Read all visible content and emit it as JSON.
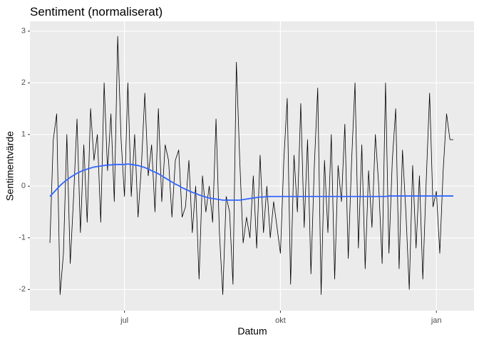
{
  "chart_data": {
    "type": "line",
    "title": "Sentiment (normaliserat)",
    "x_label": "Datum",
    "y_label": "Sentimentvärde",
    "categories": [
      null,
      null,
      null,
      null,
      null,
      null,
      null,
      null,
      null,
      null,
      null,
      null,
      null,
      null,
      null,
      null,
      null,
      null,
      null,
      null,
      null,
      null,
      "jul",
      null,
      null,
      null,
      null,
      null,
      null,
      null,
      null,
      null,
      null,
      null,
      null,
      null,
      null,
      null,
      null,
      null,
      null,
      null,
      null,
      null,
      null,
      null,
      null,
      null,
      null,
      null,
      null,
      null,
      null,
      null,
      null,
      null,
      null,
      null,
      null,
      null,
      null,
      null,
      null,
      null,
      null,
      null,
      null,
      null,
      "okt",
      null,
      null,
      null,
      null,
      null,
      null,
      null,
      null,
      null,
      null,
      null,
      null,
      null,
      null,
      null,
      null,
      null,
      null,
      null,
      null,
      null,
      null,
      null,
      null,
      null,
      null,
      null,
      null,
      null,
      null,
      null,
      null,
      null,
      null,
      null,
      null,
      null,
      null,
      null,
      null,
      null,
      null,
      null,
      null,
      null,
      "jan",
      null,
      null,
      null,
      null,
      null
    ],
    "series": [
      {
        "color": "#000000",
        "values": [
          -1.1,
          0.9,
          1.4,
          -2.1,
          -1.3,
          1.0,
          -1.5,
          -0.2,
          1.3,
          -0.9,
          0.8,
          -0.7,
          1.5,
          0.5,
          1.0,
          -0.7,
          2.0,
          0.3,
          1.4,
          -0.3,
          2.9,
          0.9,
          -0.2,
          2.0,
          -0.2,
          1.0,
          -0.6,
          0.4,
          1.8,
          0.2,
          0.8,
          -0.5,
          1.5,
          -0.3,
          0.8,
          0.5,
          -0.6,
          0.5,
          0.7,
          -0.6,
          -0.4,
          0.5,
          -0.9,
          0.0,
          -1.8,
          0.2,
          -0.5,
          0.0,
          -0.7,
          1.3,
          -0.9,
          -2.1,
          -0.2,
          -0.5,
          -1.9,
          2.4,
          0.5,
          -1.1,
          -0.6,
          -1.0,
          0.2,
          -1.2,
          0.6,
          -0.9,
          0.0,
          -1.0,
          -0.3,
          -0.8,
          -1.3,
          0.5,
          1.7,
          -1.9,
          0.6,
          -0.5,
          1.6,
          -0.8,
          0.9,
          -1.7,
          0.4,
          1.9,
          -2.1,
          0.5,
          -0.9,
          1.0,
          -1.8,
          0.4,
          -0.3,
          1.2,
          -1.4,
          0.5,
          2.0,
          -1.2,
          0.8,
          -1.6,
          0.3,
          -0.8,
          1.0,
          0.0,
          -1.5,
          2.0,
          -1.3,
          0.5,
          1.5,
          -1.6,
          0.7,
          -0.5,
          -2.0,
          0.4,
          -1.2,
          0.2,
          -1.8,
          0.1,
          1.8,
          -0.4,
          -0.1,
          -1.3,
          0.3,
          1.4,
          0.9,
          0.9
        ]
      },
      {
        "color": "#3366FF",
        "values": [
          -0.2,
          -0.13,
          -0.06,
          0.01,
          0.07,
          0.12,
          0.17,
          0.21,
          0.25,
          0.28,
          0.31,
          0.33,
          0.35,
          0.37,
          0.38,
          0.39,
          0.4,
          0.41,
          0.41,
          0.42,
          0.42,
          0.42,
          0.42,
          0.43,
          0.42,
          0.41,
          0.4,
          0.38,
          0.36,
          0.33,
          0.3,
          0.27,
          0.24,
          0.2,
          0.16,
          0.12,
          0.08,
          0.04,
          0.01,
          -0.03,
          -0.06,
          -0.09,
          -0.12,
          -0.14,
          -0.17,
          -0.19,
          -0.21,
          -0.23,
          -0.24,
          -0.25,
          -0.26,
          -0.27,
          -0.27,
          -0.27,
          -0.27,
          -0.27,
          -0.27,
          -0.26,
          -0.25,
          -0.24,
          -0.23,
          -0.22,
          -0.21,
          -0.21,
          -0.2,
          -0.2,
          -0.2,
          -0.2,
          -0.2,
          -0.2,
          -0.2,
          -0.2,
          -0.2,
          -0.2,
          -0.2,
          -0.2,
          -0.2,
          -0.2,
          -0.2,
          -0.2,
          -0.2,
          -0.2,
          -0.2,
          -0.2,
          -0.2,
          -0.2,
          -0.2,
          -0.2,
          -0.2,
          -0.2,
          -0.2,
          -0.2,
          -0.2,
          -0.2,
          -0.2,
          -0.2,
          -0.2,
          -0.2,
          -0.2,
          -0.2,
          -0.19,
          -0.19,
          -0.19,
          -0.19,
          -0.19,
          -0.19,
          -0.19,
          -0.19,
          -0.19,
          -0.19,
          -0.19,
          -0.19,
          -0.19,
          -0.19,
          -0.19,
          -0.19,
          -0.19,
          -0.19,
          -0.19,
          -0.19
        ]
      }
    ],
    "ylim": [
      -2.41,
      3.19
    ],
    "yticks": [
      -2,
      -1,
      0,
      1,
      2,
      3
    ],
    "grid": true,
    "panel_color": "#EBEBEB"
  }
}
